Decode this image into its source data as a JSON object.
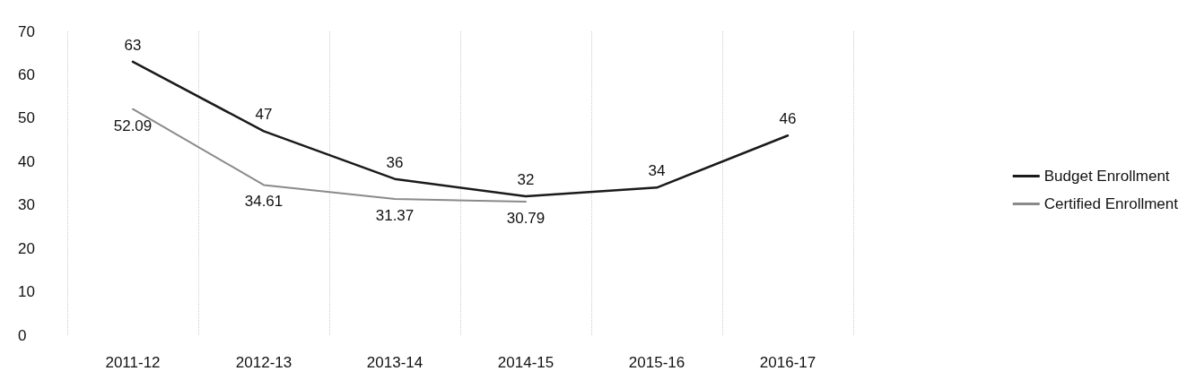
{
  "chart_data": {
    "type": "line",
    "categories": [
      "2011-12",
      "2012-13",
      "2013-14",
      "2014-15",
      "2015-16",
      "2016-17"
    ],
    "series": [
      {
        "name": "Budget Enrollment",
        "color": "#1a1a1a",
        "values": [
          63,
          47,
          36,
          32,
          34,
          46
        ]
      },
      {
        "name": "Certified Enrollment",
        "color": "#8a8a8a",
        "values": [
          52.09,
          34.61,
          31.37,
          30.79,
          null,
          null
        ]
      }
    ],
    "ylim": [
      0,
      70
    ],
    "yticks": [
      0,
      10,
      20,
      30,
      40,
      50,
      60,
      70
    ],
    "grid": "x",
    "legend": "right",
    "marker": "none",
    "line_style": "solid",
    "data_labels": true
  }
}
